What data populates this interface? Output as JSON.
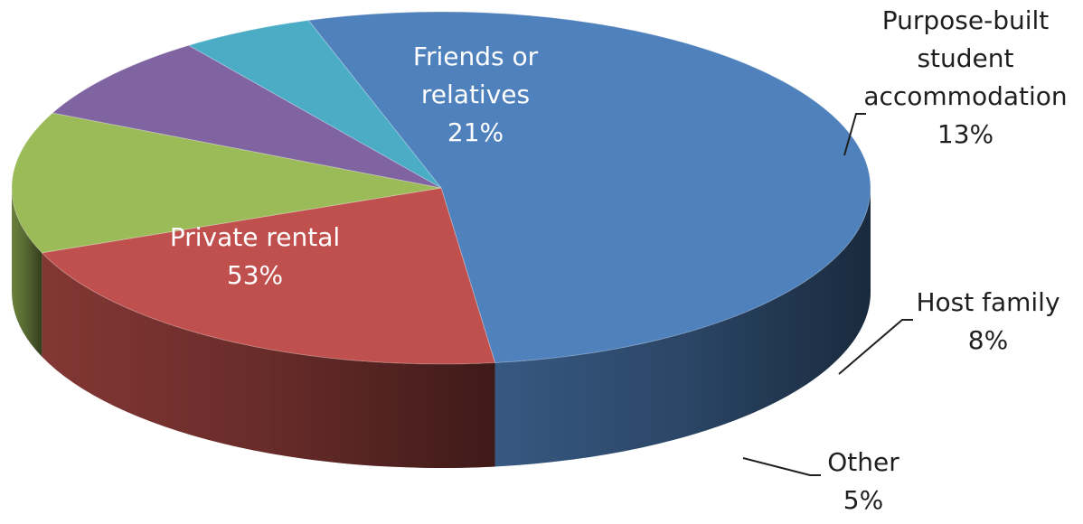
{
  "chart_data": {
    "type": "pie",
    "style": "3d",
    "title": "",
    "slices": [
      {
        "label_lines": [
          "Private rental"
        ],
        "value": 53,
        "value_label": "53%",
        "color": "#4f81bd",
        "label_position": "inside"
      },
      {
        "label_lines": [
          "Friends or",
          "relatives"
        ],
        "value": 21,
        "value_label": "21%",
        "color": "#c0504d",
        "label_position": "inside"
      },
      {
        "label_lines": [
          "Purpose-built",
          "student",
          "accommodation"
        ],
        "value": 13,
        "value_label": "13%",
        "color": "#9bbb59",
        "label_position": "outside"
      },
      {
        "label_lines": [
          "Host family"
        ],
        "value": 8,
        "value_label": "8%",
        "color": "#8064a2",
        "label_position": "outside"
      },
      {
        "label_lines": [
          "Other"
        ],
        "value": 5,
        "value_label": "5%",
        "color": "#4bacc6",
        "label_position": "outside"
      }
    ],
    "legend": "none"
  }
}
